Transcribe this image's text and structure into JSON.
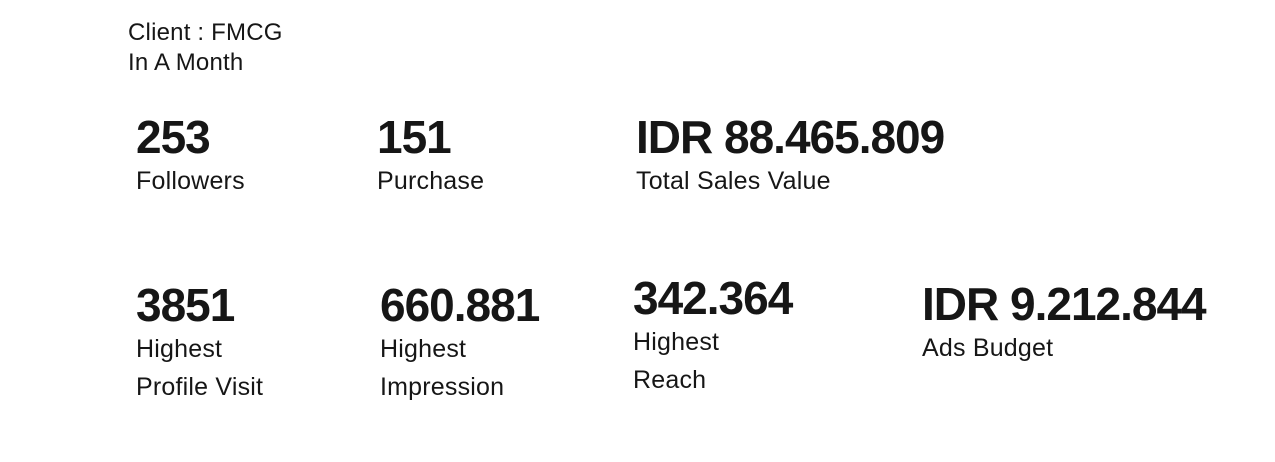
{
  "page": {
    "background": "#ffffff",
    "text_color": "#161616"
  },
  "header": {
    "client": "Client : FMCG",
    "period": "In A Month"
  },
  "stats": {
    "row1": [
      {
        "value": "253",
        "label": "Followers"
      },
      {
        "value": "151",
        "label": "Purchase"
      },
      {
        "value": "IDR 88.465.809",
        "label": "Total Sales Value"
      }
    ],
    "row2": [
      {
        "value": "3851",
        "label": "Highest\nProfile Visit"
      },
      {
        "value": "660.881",
        "label": "Highest\nImpression"
      },
      {
        "value": "342.364",
        "label": "Highest\nReach"
      },
      {
        "value": "IDR 9.212.844",
        "label": "Ads Budget"
      }
    ]
  }
}
